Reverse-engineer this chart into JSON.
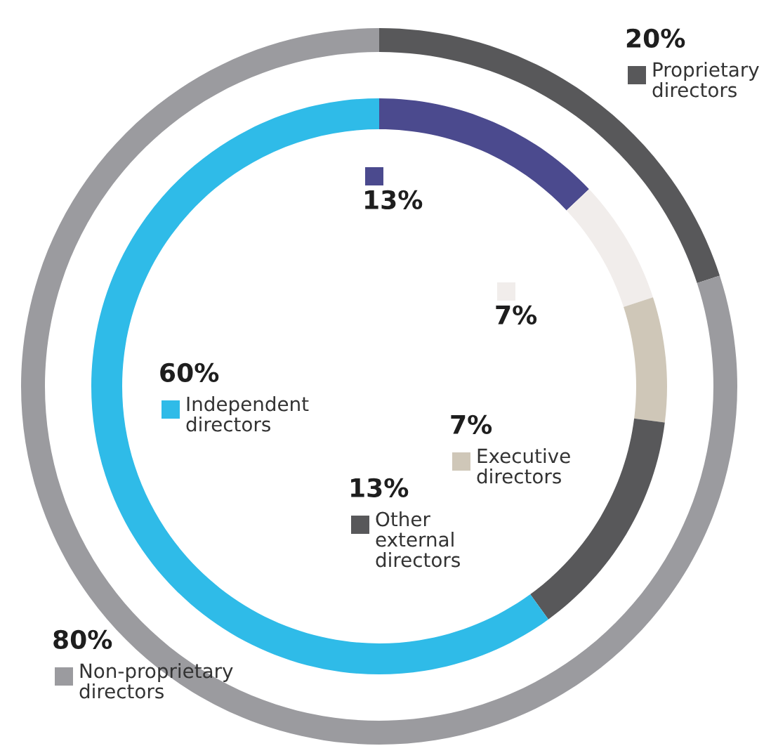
{
  "chart_data": {
    "type": "donut",
    "legend": "center",
    "categories": [
      "Proprietary directors",
      "Non-proprietary directors",
      null,
      null,
      "Executive directors",
      "Other external directors",
      "Independent directors"
    ],
    "series": [
      {
        "values": [
          20,
          80,
          null,
          null,
          null,
          null,
          null
        ],
        "colors": [
          "#58585a",
          "#9b9b9f",
          null,
          null,
          null,
          null,
          null
        ],
        "value_labels": [
          "20%",
          "80%",
          null,
          null,
          null,
          null,
          null
        ]
      },
      {
        "values": [
          null,
          null,
          13,
          7,
          7,
          13,
          60
        ],
        "colors": [
          null,
          null,
          "#4b4a8e",
          "#f1edeb",
          "#cfc7b8",
          "#58585a",
          "#2fbbe8"
        ],
        "value_labels": [
          null,
          null,
          "13%",
          "7%",
          "7%",
          "13%",
          "60%"
        ]
      }
    ]
  }
}
